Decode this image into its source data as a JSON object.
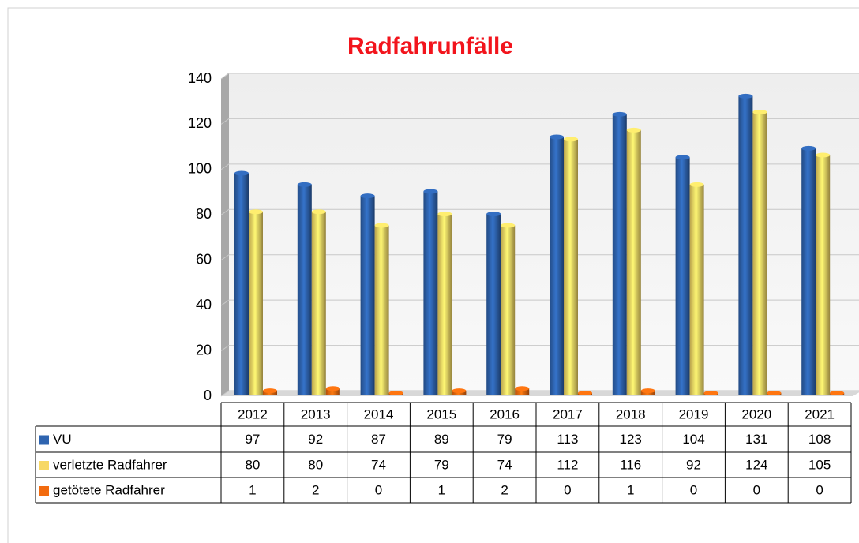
{
  "chart_data": {
    "type": "bar",
    "title": "Radfahrunfälle",
    "categories": [
      "2012",
      "2013",
      "2014",
      "2015",
      "2016",
      "2017",
      "2018",
      "2019",
      "2020",
      "2021"
    ],
    "series": [
      {
        "name": "VU",
        "color": "#2e64b0",
        "values": [
          97,
          92,
          87,
          89,
          79,
          113,
          123,
          104,
          131,
          108
        ]
      },
      {
        "name": "verletzte Radfahrer",
        "color": "#f7d865",
        "values": [
          80,
          80,
          74,
          79,
          74,
          112,
          116,
          92,
          124,
          105
        ]
      },
      {
        "name": "getötete Radfahrer",
        "color": "#f26b0f",
        "values": [
          1,
          2,
          0,
          1,
          2,
          0,
          1,
          0,
          0,
          0
        ]
      }
    ],
    "ylim": [
      0,
      140
    ],
    "yticks": [
      0,
      20,
      40,
      60,
      80,
      100,
      120,
      140
    ],
    "grid": true
  }
}
